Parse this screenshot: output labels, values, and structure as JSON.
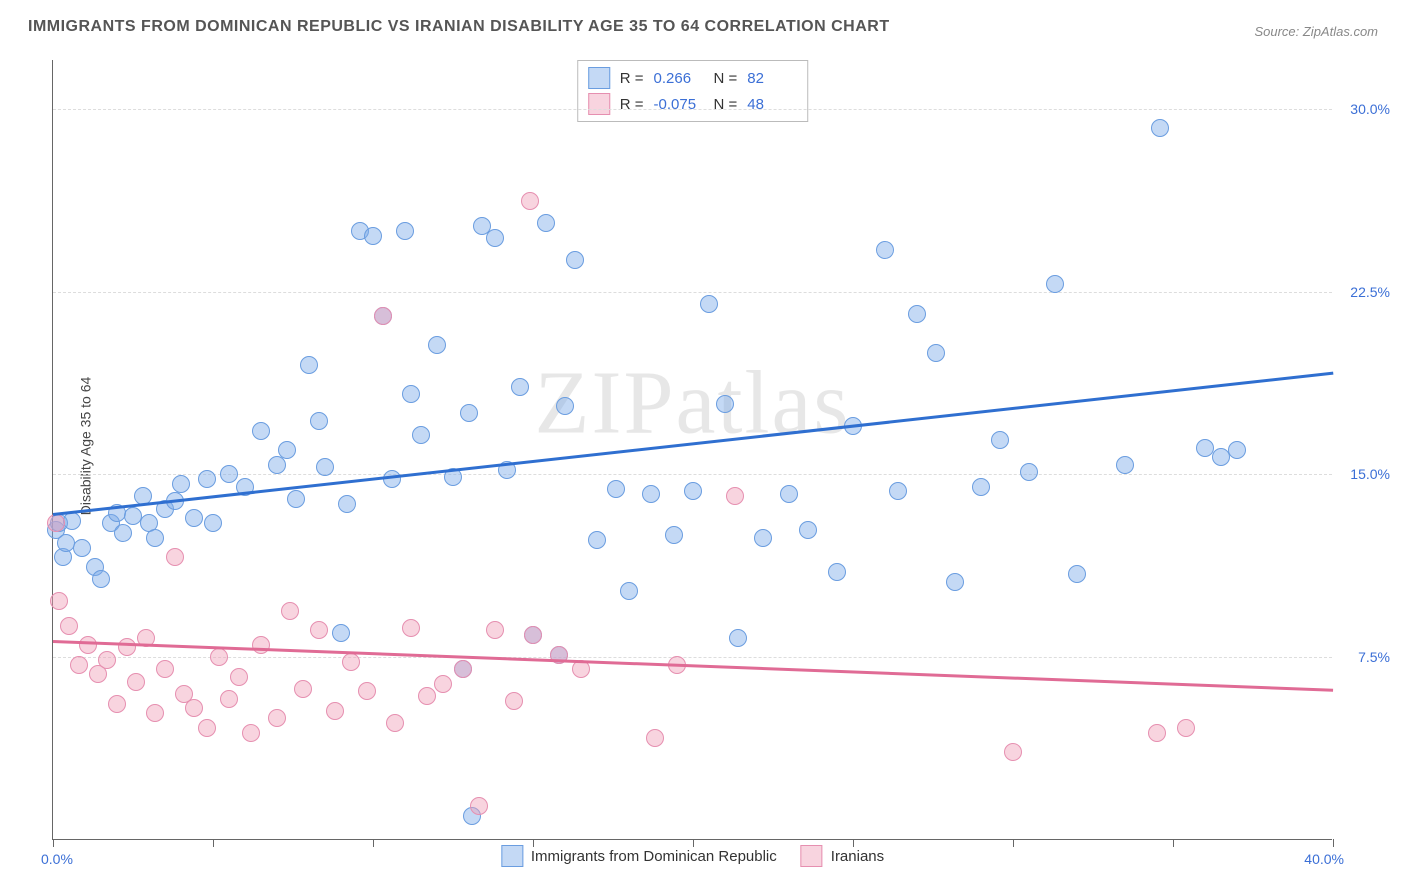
{
  "title": "IMMIGRANTS FROM DOMINICAN REPUBLIC VS IRANIAN DISABILITY AGE 35 TO 64 CORRELATION CHART",
  "source": "Source: ZipAtlas.com",
  "watermark": "ZIPatlas",
  "yaxis_label": "Disability Age 35 to 64",
  "chart": {
    "type": "scatter",
    "xlim": [
      0,
      40
    ],
    "ylim": [
      0,
      32
    ],
    "x_min_label": "0.0%",
    "x_max_label": "40.0%",
    "yticks": [
      7.5,
      15.0,
      22.5,
      30.0
    ],
    "ytick_labels": [
      "7.5%",
      "15.0%",
      "22.5%",
      "30.0%"
    ],
    "xtick_positions": [
      0,
      5,
      10,
      15,
      20,
      25,
      30,
      35,
      40
    ],
    "grid_color": "#dddddd",
    "background": "#ffffff",
    "axis_color": "#666666",
    "tick_label_color": "#3b6fd6",
    "marker_radius": 9,
    "marker_stroke_width": 1.5,
    "series": [
      {
        "name": "Immigrants from Dominican Republic",
        "legend_label": "Immigrants from Dominican Republic",
        "fill": "rgba(124,171,232,0.45)",
        "stroke": "#6a9de0",
        "trend_color": "#2f6fd0",
        "trend": {
          "y_at_xmin": 13.4,
          "y_at_xmax": 19.2
        },
        "R": "0.266",
        "N": "82",
        "points": [
          [
            0.1,
            12.7
          ],
          [
            0.2,
            13.0
          ],
          [
            0.3,
            11.6
          ],
          [
            0.4,
            12.2
          ],
          [
            0.6,
            13.1
          ],
          [
            0.9,
            12.0
          ],
          [
            1.3,
            11.2
          ],
          [
            1.5,
            10.7
          ],
          [
            1.8,
            13.0
          ],
          [
            2.0,
            13.4
          ],
          [
            2.2,
            12.6
          ],
          [
            2.5,
            13.3
          ],
          [
            2.8,
            14.1
          ],
          [
            3.0,
            13.0
          ],
          [
            3.2,
            12.4
          ],
          [
            3.5,
            13.6
          ],
          [
            3.8,
            13.9
          ],
          [
            4.0,
            14.6
          ],
          [
            4.4,
            13.2
          ],
          [
            4.8,
            14.8
          ],
          [
            5.0,
            13.0
          ],
          [
            5.5,
            15.0
          ],
          [
            6.0,
            14.5
          ],
          [
            6.5,
            16.8
          ],
          [
            7.0,
            15.4
          ],
          [
            7.3,
            16.0
          ],
          [
            7.6,
            14.0
          ],
          [
            8.0,
            19.5
          ],
          [
            8.3,
            17.2
          ],
          [
            8.5,
            15.3
          ],
          [
            9.0,
            8.5
          ],
          [
            9.2,
            13.8
          ],
          [
            9.6,
            25.0
          ],
          [
            10.0,
            24.8
          ],
          [
            10.3,
            21.5
          ],
          [
            10.6,
            14.8
          ],
          [
            11.0,
            25.0
          ],
          [
            11.2,
            18.3
          ],
          [
            11.5,
            16.6
          ],
          [
            12.0,
            20.3
          ],
          [
            12.5,
            14.9
          ],
          [
            12.8,
            7.0
          ],
          [
            13.0,
            17.5
          ],
          [
            13.1,
            1.0
          ],
          [
            13.4,
            25.2
          ],
          [
            13.8,
            24.7
          ],
          [
            14.2,
            15.2
          ],
          [
            14.6,
            18.6
          ],
          [
            15.0,
            8.4
          ],
          [
            15.4,
            25.3
          ],
          [
            15.8,
            7.6
          ],
          [
            16.0,
            17.8
          ],
          [
            16.3,
            23.8
          ],
          [
            17.0,
            12.3
          ],
          [
            17.6,
            14.4
          ],
          [
            18.0,
            10.2
          ],
          [
            18.7,
            14.2
          ],
          [
            19.4,
            12.5
          ],
          [
            20.0,
            14.3
          ],
          [
            20.5,
            22.0
          ],
          [
            21.0,
            17.9
          ],
          [
            21.4,
            8.3
          ],
          [
            22.2,
            12.4
          ],
          [
            23.0,
            14.2
          ],
          [
            23.6,
            12.7
          ],
          [
            24.5,
            11.0
          ],
          [
            25.0,
            17.0
          ],
          [
            26.0,
            24.2
          ],
          [
            26.4,
            14.3
          ],
          [
            27.0,
            21.6
          ],
          [
            27.6,
            20.0
          ],
          [
            28.2,
            10.6
          ],
          [
            29.0,
            14.5
          ],
          [
            29.6,
            16.4
          ],
          [
            30.5,
            15.1
          ],
          [
            31.3,
            22.8
          ],
          [
            32.0,
            10.9
          ],
          [
            33.5,
            15.4
          ],
          [
            34.6,
            29.2
          ],
          [
            36.0,
            16.1
          ],
          [
            36.5,
            15.7
          ],
          [
            37.0,
            16.0
          ]
        ]
      },
      {
        "name": "Iranians",
        "legend_label": "Iranians",
        "fill": "rgba(240,160,185,0.45)",
        "stroke": "#e68fb0",
        "trend_color": "#e06b95",
        "trend": {
          "y_at_xmin": 8.2,
          "y_at_xmax": 6.2
        },
        "R": "-0.075",
        "N": "48",
        "points": [
          [
            0.1,
            13.0
          ],
          [
            0.2,
            9.8
          ],
          [
            0.5,
            8.8
          ],
          [
            0.8,
            7.2
          ],
          [
            1.1,
            8.0
          ],
          [
            1.4,
            6.8
          ],
          [
            1.7,
            7.4
          ],
          [
            2.0,
            5.6
          ],
          [
            2.3,
            7.9
          ],
          [
            2.6,
            6.5
          ],
          [
            2.9,
            8.3
          ],
          [
            3.2,
            5.2
          ],
          [
            3.5,
            7.0
          ],
          [
            3.8,
            11.6
          ],
          [
            4.1,
            6.0
          ],
          [
            4.4,
            5.4
          ],
          [
            4.8,
            4.6
          ],
          [
            5.2,
            7.5
          ],
          [
            5.5,
            5.8
          ],
          [
            5.8,
            6.7
          ],
          [
            6.2,
            4.4
          ],
          [
            6.5,
            8.0
          ],
          [
            7.0,
            5.0
          ],
          [
            7.4,
            9.4
          ],
          [
            7.8,
            6.2
          ],
          [
            8.3,
            8.6
          ],
          [
            8.8,
            5.3
          ],
          [
            9.3,
            7.3
          ],
          [
            9.8,
            6.1
          ],
          [
            10.3,
            21.5
          ],
          [
            10.7,
            4.8
          ],
          [
            11.2,
            8.7
          ],
          [
            11.7,
            5.9
          ],
          [
            12.2,
            6.4
          ],
          [
            12.8,
            7.0
          ],
          [
            13.3,
            1.4
          ],
          [
            13.8,
            8.6
          ],
          [
            14.4,
            5.7
          ],
          [
            14.9,
            26.2
          ],
          [
            15.0,
            8.4
          ],
          [
            15.8,
            7.6
          ],
          [
            16.5,
            7.0
          ],
          [
            18.8,
            4.2
          ],
          [
            19.5,
            7.2
          ],
          [
            21.3,
            14.1
          ],
          [
            30.0,
            3.6
          ],
          [
            34.5,
            4.4
          ],
          [
            35.4,
            4.6
          ]
        ]
      }
    ]
  },
  "stats_legend": {
    "r_prefix": "R =",
    "n_prefix": "N ="
  }
}
